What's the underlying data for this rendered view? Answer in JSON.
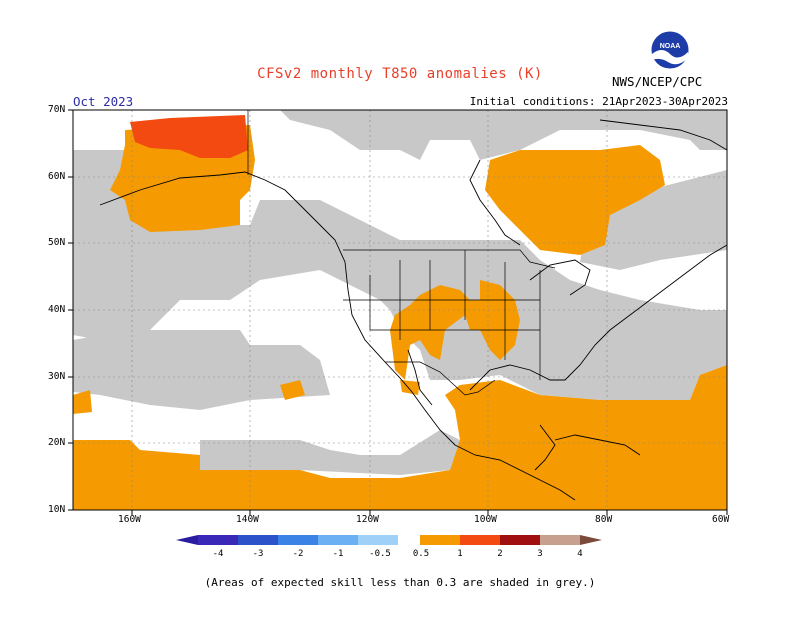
{
  "header": {
    "title": "CFSv2 monthly T850 anomalies (K)",
    "valid_month": "Oct 2023",
    "initial_conditions": "Initial conditions: 21Apr2023-30Apr2023",
    "agency": "NWS/NCEP/CPC",
    "logo_icon": "noaa-logo-icon"
  },
  "map": {
    "lat_labels": [
      "70N",
      "60N",
      "50N",
      "40N",
      "30N",
      "20N",
      "10N"
    ],
    "lon_labels": [
      "160W",
      "140W",
      "120W",
      "100W",
      "80W",
      "60W"
    ],
    "region": "North America",
    "colors": {
      "low_skill_grey": "#c8c8c8",
      "anom_0_5_to_1": "#f59a00",
      "anom_1_to_2": "#f24a10",
      "no_signal": "#ffffff"
    }
  },
  "colorbar": {
    "labels": [
      "-4",
      "-3",
      "-2",
      "-1",
      "-0.5",
      "0.5",
      "1",
      "2",
      "3",
      "4"
    ],
    "colors": [
      "#2a1ca0",
      "#2b52c8",
      "#3a82e6",
      "#6ab0f2",
      "#9fd0f8",
      "#ffffff",
      "#f59a00",
      "#f24a10",
      "#a01010",
      "#c8a090",
      "#7a4a3a"
    ]
  },
  "footer": {
    "note": "(Areas of expected skill less than 0.3 are shaded in grey.)"
  }
}
